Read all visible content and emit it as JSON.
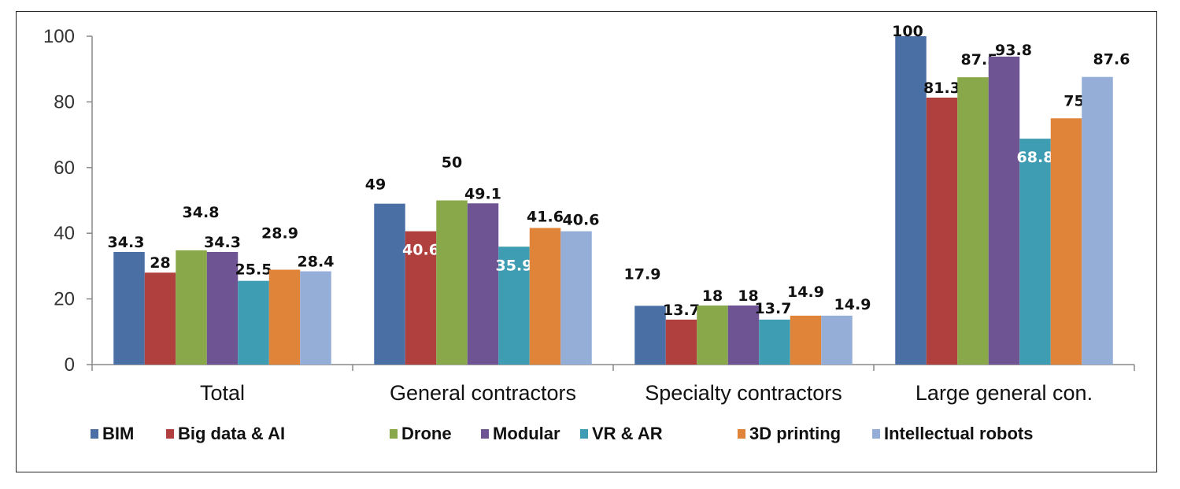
{
  "chart_data": {
    "type": "bar",
    "title": "",
    "xlabel": "",
    "ylabel": "",
    "ylim": [
      0,
      100
    ],
    "yticks": [
      0,
      20,
      40,
      60,
      80,
      100
    ],
    "grid": false,
    "legend_position": "bottom",
    "categories": [
      "Total",
      "General contractors",
      "Specialty contractors",
      "Large general con."
    ],
    "series": [
      {
        "name": "BIM",
        "color": "#4A6FA5",
        "values": [
          34.3,
          49,
          17.9,
          100
        ]
      },
      {
        "name": "Big data & AI",
        "color": "#B0403D",
        "values": [
          28,
          40.6,
          13.7,
          81.3
        ]
      },
      {
        "name": "Drone",
        "color": "#88A84A",
        "values": [
          34.8,
          50,
          18,
          87.5
        ]
      },
      {
        "name": "Modular",
        "color": "#6F5494",
        "values": [
          34.3,
          49.1,
          18,
          93.8
        ]
      },
      {
        "name": "VR & AR",
        "color": "#3E9CB3",
        "values": [
          25.5,
          35.9,
          13.7,
          68.8
        ]
      },
      {
        "name": "3D printing",
        "color": "#E0843A",
        "values": [
          28.9,
          41.6,
          14.9,
          75
        ]
      },
      {
        "name": "Intellectual robots",
        "color": "#95AED8",
        "values": [
          28.4,
          40.6,
          14.9,
          87.6
        ]
      }
    ]
  }
}
